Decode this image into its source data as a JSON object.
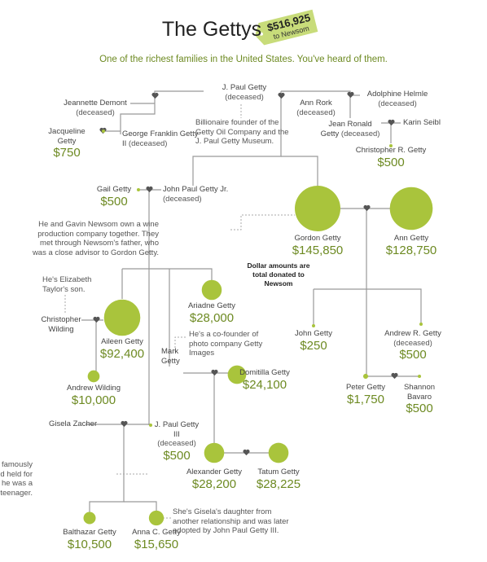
{
  "header": {
    "title": "The Gettys",
    "tag_amount": "$516,925",
    "tag_text": "to Newsom",
    "subtitle": "One of the richest families in the United States. You've heard of them."
  },
  "people": [
    {
      "name": "J. Paul Getty",
      "status": "(deceased)"
    },
    {
      "name": "Jeannette Demont",
      "status": "(deceased)"
    },
    {
      "name": "Adolphine Helmle",
      "status": "(deceased)"
    },
    {
      "name": "Ann Rork",
      "status": "(deceased)"
    },
    {
      "name": "George Franklin Getty II",
      "status": "(deceased)"
    },
    {
      "name": "Jean Ronald Getty",
      "status": "(deceased)"
    },
    {
      "name": "Karin Seibl"
    },
    {
      "name": "John Paul Getty Jr.",
      "status": "(deceased)"
    },
    {
      "name": "Christopher Wilding"
    },
    {
      "name": "Mark Getty"
    },
    {
      "name": "Gisela Zacher"
    }
  ],
  "donors": [
    {
      "name": "Jacqueline Getty",
      "amount": 750,
      "amount_label": "$750"
    },
    {
      "name": "Christopher R. Getty",
      "amount": 500,
      "amount_label": "$500"
    },
    {
      "name": "Gail Getty",
      "amount": 500,
      "amount_label": "$500"
    },
    {
      "name": "Gordon Getty",
      "amount": 145850,
      "amount_label": "$145,850"
    },
    {
      "name": "Ann Getty",
      "amount": 128750,
      "amount_label": "$128,750"
    },
    {
      "name": "Aileen Getty",
      "amount": 92400,
      "amount_label": "$92,400"
    },
    {
      "name": "Ariadne Getty",
      "amount": 28000,
      "amount_label": "$28,000"
    },
    {
      "name": "John Getty",
      "amount": 250,
      "amount_label": "$250"
    },
    {
      "name": "Andrew R. Getty",
      "status": "(deceased)",
      "amount": 500,
      "amount_label": "$500"
    },
    {
      "name": "Andrew Wilding",
      "amount": 10000,
      "amount_label": "$10,000"
    },
    {
      "name": "Domitilla Getty",
      "amount": 24100,
      "amount_label": "$24,100"
    },
    {
      "name": "Peter Getty",
      "amount": 1750,
      "amount_label": "$1,750"
    },
    {
      "name": "Shannon Bavaro",
      "amount": 500,
      "amount_label": "$500"
    },
    {
      "name": "J. Paul Getty III",
      "status": "(deceased)",
      "amount": 500,
      "amount_label": "$500"
    },
    {
      "name": "Alexander Getty",
      "amount": 28200,
      "amount_label": "$28,200"
    },
    {
      "name": "Tatum Getty",
      "amount": 28225,
      "amount_label": "$28,225"
    },
    {
      "name": "Balthazar Getty",
      "amount": 10500,
      "amount_label": "$10,500"
    },
    {
      "name": "Anna C. Getty",
      "amount": 15650,
      "amount_label": "$15,650"
    }
  ],
  "notes": [
    "Billionaire founder of the Getty Oil Company and the J. Paul Getty Museum.",
    "He and Gavin Newsom own a wine production company together. They met through Newsom's father, who was a close advisor to Gordon Getty.",
    "Dollar amounts are total donated to Newsom",
    "He's Elizabeth Taylor's son.",
    "He's a co-founder of photo company Getty Images",
    "He was famously kidnapped and held for ransom when he was a teenager.",
    "She's Gisela's daughter from another relationship and was later adopted by John Paul Getty III."
  ]
}
